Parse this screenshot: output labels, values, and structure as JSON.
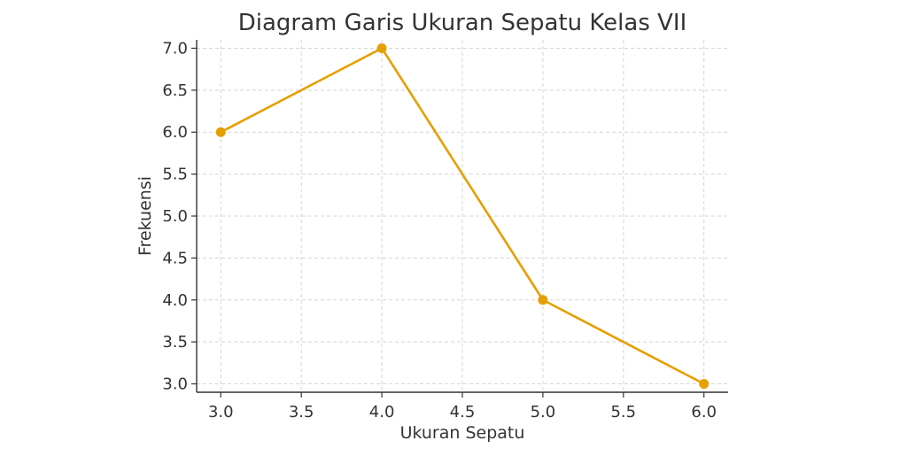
{
  "chart_data": {
    "type": "line",
    "title": "Diagram Garis Ukuran Sepatu Kelas VII",
    "xlabel": "Ukuran Sepatu",
    "ylabel": "Frekuensi",
    "x": [
      3.0,
      4.0,
      5.0,
      6.0
    ],
    "series": [
      {
        "values": [
          6,
          7,
          4,
          3
        ]
      }
    ],
    "xlim": [
      2.85,
      6.15
    ],
    "ylim": [
      2.9,
      7.1
    ],
    "xticks": [
      "3.0",
      "3.5",
      "4.0",
      "4.5",
      "5.0",
      "5.5",
      "6.0"
    ],
    "yticks": [
      "3.0",
      "3.5",
      "4.0",
      "4.5",
      "5.0",
      "5.5",
      "6.0",
      "6.5",
      "7.0"
    ],
    "grid": true,
    "line_color": "#E69F00"
  }
}
